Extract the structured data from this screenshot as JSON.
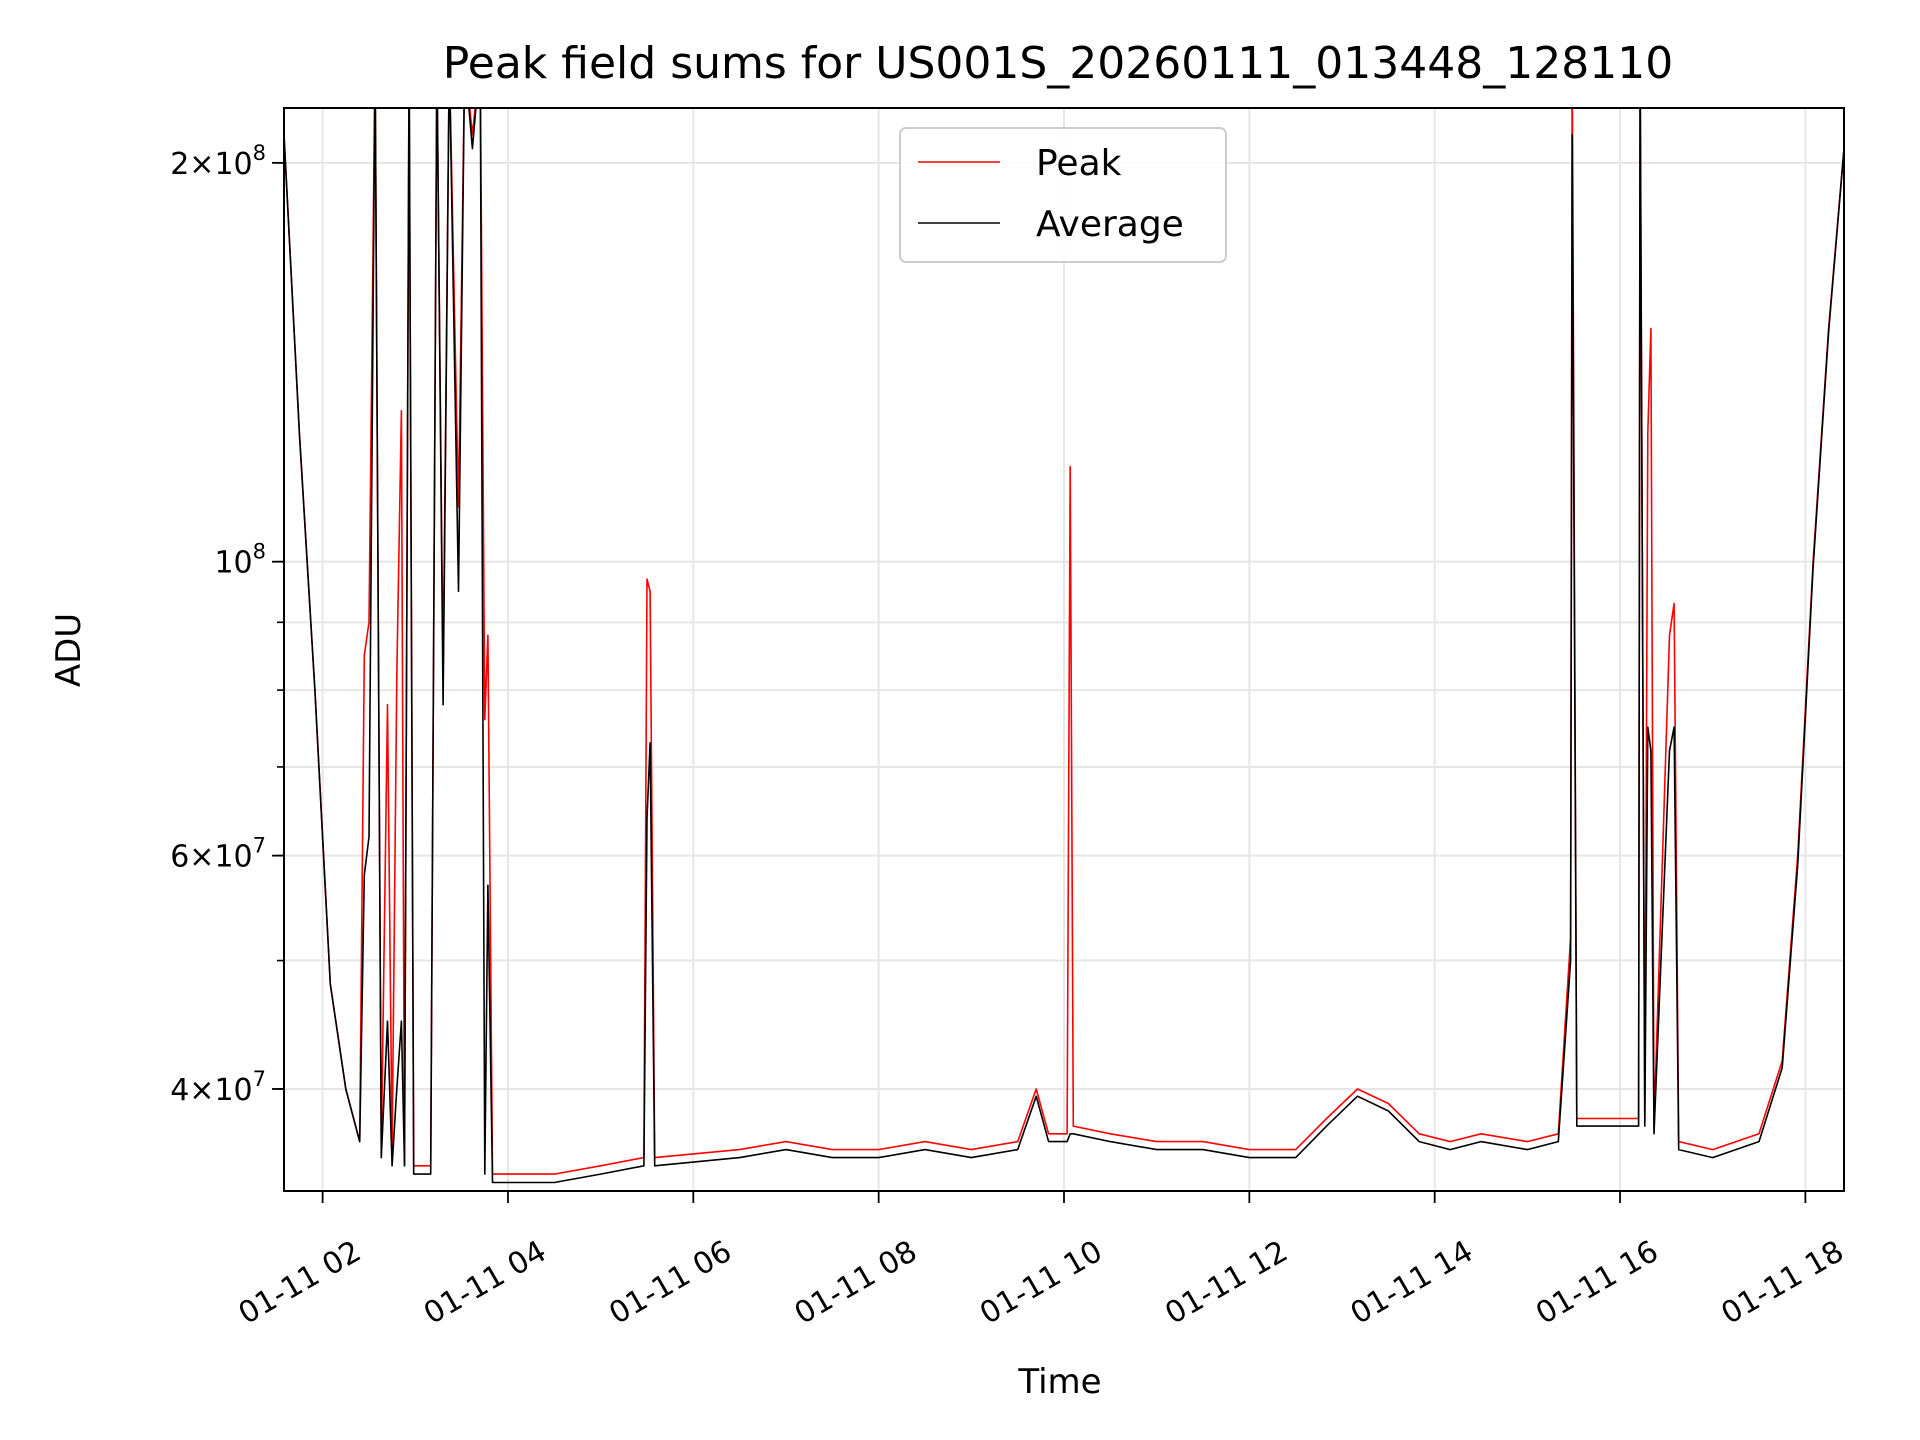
{
  "chart_data": {
    "type": "line",
    "title": "Peak field sums for US001S_20260111_013448_128110",
    "xlabel": "Time",
    "ylabel": "ADU",
    "yscale": "log",
    "ylim": [
      33500000,
      220000000
    ],
    "xlim": [
      "01-11 01:35",
      "01-11 18:25"
    ],
    "x_tick_labels": [
      "01-11 02",
      "01-11 04",
      "01-11 06",
      "01-11 08",
      "01-11 10",
      "01-11 12",
      "01-11 14",
      "01-11 16",
      "01-11 18"
    ],
    "y_tick_labels": [
      {
        "value": 40000000,
        "mantissa": "4",
        "exponent": "7"
      },
      {
        "value": 60000000,
        "mantissa": "6",
        "exponent": "7"
      },
      {
        "value": 100000000,
        "mantissa": "",
        "exponent": "8"
      },
      {
        "value": 200000000,
        "mantissa": "2",
        "exponent": "8"
      }
    ],
    "grid": true,
    "legend_position": "upper center",
    "series": [
      {
        "name": "Peak",
        "color": "#ff0000",
        "points": [
          [
            "01-11 01:35",
            210000000
          ],
          [
            "01-11 01:45",
            125000000
          ],
          [
            "01-11 01:55",
            80000000
          ],
          [
            "01-11 02:05",
            48000000
          ],
          [
            "01-11 02:15",
            40000000
          ],
          [
            "01-11 02:24",
            36500000
          ],
          [
            "01-11 02:27",
            85000000
          ],
          [
            "01-11 02:30",
            90000000
          ],
          [
            "01-11 02:34",
            240000000
          ],
          [
            "01-11 02:38",
            36000000
          ],
          [
            "01-11 02:42",
            78000000
          ],
          [
            "01-11 02:45",
            36000000
          ],
          [
            "01-11 02:48",
            82000000
          ],
          [
            "01-11 02:51",
            130000000
          ],
          [
            "01-11 02:53",
            35000000
          ],
          [
            "01-11 02:56",
            240000000
          ],
          [
            "01-11 02:59",
            35000000
          ],
          [
            "01-11 03:10",
            35000000
          ],
          [
            "01-11 03:14",
            240000000
          ],
          [
            "01-11 03:18",
            82000000
          ],
          [
            "01-11 03:22",
            240000000
          ],
          [
            "01-11 03:28",
            110000000
          ],
          [
            "01-11 03:32",
            240000000
          ],
          [
            "01-11 03:37",
            210000000
          ],
          [
            "01-11 03:42",
            240000000
          ],
          [
            "01-11 03:45",
            76000000
          ],
          [
            "01-11 03:47",
            88000000
          ],
          [
            "01-11 03:50",
            34500000
          ],
          [
            "01-11 04:30",
            34500000
          ],
          [
            "01-11 05:00",
            35000000
          ],
          [
            "01-11 05:28",
            35500000
          ],
          [
            "01-11 05:30",
            97000000
          ],
          [
            "01-11 05:32",
            95000000
          ],
          [
            "01-11 05:35",
            35500000
          ],
          [
            "01-11 06:30",
            36000000
          ],
          [
            "01-11 07:00",
            36500000
          ],
          [
            "01-11 07:30",
            36000000
          ],
          [
            "01-11 08:00",
            36000000
          ],
          [
            "01-11 08:30",
            36500000
          ],
          [
            "01-11 09:00",
            36000000
          ],
          [
            "01-11 09:30",
            36500000
          ],
          [
            "01-11 09:42",
            40000000
          ],
          [
            "01-11 09:50",
            37000000
          ],
          [
            "01-11 10:02",
            37000000
          ],
          [
            "01-11 10:04",
            118000000
          ],
          [
            "01-11 10:06",
            37500000
          ],
          [
            "01-11 10:30",
            37000000
          ],
          [
            "01-11 11:00",
            36500000
          ],
          [
            "01-11 11:30",
            36500000
          ],
          [
            "01-11 12:00",
            36000000
          ],
          [
            "01-11 12:30",
            36000000
          ],
          [
            "01-11 12:50",
            38000000
          ],
          [
            "01-11 13:10",
            40000000
          ],
          [
            "01-11 13:30",
            39000000
          ],
          [
            "01-11 13:50",
            37000000
          ],
          [
            "01-11 14:10",
            36500000
          ],
          [
            "01-11 14:30",
            37000000
          ],
          [
            "01-11 15:00",
            36500000
          ],
          [
            "01-11 15:20",
            37000000
          ],
          [
            "01-11 15:28",
            52000000
          ],
          [
            "01-11 15:29",
            240000000
          ],
          [
            "01-11 15:32",
            38000000
          ],
          [
            "01-11 16:00",
            38000000
          ],
          [
            "01-11 16:12",
            38000000
          ],
          [
            "01-11 16:13",
            240000000
          ],
          [
            "01-11 16:16",
            38000000
          ],
          [
            "01-11 16:18",
            125000000
          ],
          [
            "01-11 16:20",
            150000000
          ],
          [
            "01-11 16:22",
            37500000
          ],
          [
            "01-11 16:32",
            88000000
          ],
          [
            "01-11 16:35",
            93000000
          ],
          [
            "01-11 16:38",
            36500000
          ],
          [
            "01-11 17:00",
            36000000
          ],
          [
            "01-11 17:30",
            37000000
          ],
          [
            "01-11 17:45",
            42000000
          ],
          [
            "01-11 17:55",
            60000000
          ],
          [
            "01-11 18:05",
            100000000
          ],
          [
            "01-11 18:15",
            150000000
          ],
          [
            "01-11 18:25",
            205000000
          ]
        ]
      },
      {
        "name": "Average",
        "color": "#000000",
        "points": [
          [
            "01-11 01:35",
            210000000
          ],
          [
            "01-11 01:45",
            125000000
          ],
          [
            "01-11 01:55",
            80000000
          ],
          [
            "01-11 02:05",
            48000000
          ],
          [
            "01-11 02:15",
            40000000
          ],
          [
            "01-11 02:24",
            36500000
          ],
          [
            "01-11 02:27",
            58000000
          ],
          [
            "01-11 02:30",
            62000000
          ],
          [
            "01-11 02:34",
            240000000
          ],
          [
            "01-11 02:38",
            35500000
          ],
          [
            "01-11 02:42",
            45000000
          ],
          [
            "01-11 02:45",
            35000000
          ],
          [
            "01-11 02:48",
            40000000
          ],
          [
            "01-11 02:51",
            45000000
          ],
          [
            "01-11 02:53",
            35000000
          ],
          [
            "01-11 02:56",
            240000000
          ],
          [
            "01-11 02:59",
            34500000
          ],
          [
            "01-11 03:10",
            34500000
          ],
          [
            "01-11 03:14",
            240000000
          ],
          [
            "01-11 03:18",
            78000000
          ],
          [
            "01-11 03:22",
            240000000
          ],
          [
            "01-11 03:28",
            95000000
          ],
          [
            "01-11 03:32",
            240000000
          ],
          [
            "01-11 03:37",
            205000000
          ],
          [
            "01-11 03:42",
            240000000
          ],
          [
            "01-11 03:45",
            34500000
          ],
          [
            "01-11 03:47",
            57000000
          ],
          [
            "01-11 03:50",
            34000000
          ],
          [
            "01-11 04:30",
            34000000
          ],
          [
            "01-11 05:00",
            34500000
          ],
          [
            "01-11 05:28",
            35000000
          ],
          [
            "01-11 05:30",
            64000000
          ],
          [
            "01-11 05:32",
            73000000
          ],
          [
            "01-11 05:35",
            35000000
          ],
          [
            "01-11 06:30",
            35500000
          ],
          [
            "01-11 07:00",
            36000000
          ],
          [
            "01-11 07:30",
            35500000
          ],
          [
            "01-11 08:00",
            35500000
          ],
          [
            "01-11 08:30",
            36000000
          ],
          [
            "01-11 09:00",
            35500000
          ],
          [
            "01-11 09:30",
            36000000
          ],
          [
            "01-11 09:42",
            39500000
          ],
          [
            "01-11 09:50",
            36500000
          ],
          [
            "01-11 10:02",
            36500000
          ],
          [
            "01-11 10:04",
            37000000
          ],
          [
            "01-11 10:06",
            37000000
          ],
          [
            "01-11 10:30",
            36500000
          ],
          [
            "01-11 11:00",
            36000000
          ],
          [
            "01-11 11:30",
            36000000
          ],
          [
            "01-11 12:00",
            35500000
          ],
          [
            "01-11 12:30",
            35500000
          ],
          [
            "01-11 12:50",
            37500000
          ],
          [
            "01-11 13:10",
            39500000
          ],
          [
            "01-11 13:30",
            38500000
          ],
          [
            "01-11 13:50",
            36500000
          ],
          [
            "01-11 14:10",
            36000000
          ],
          [
            "01-11 14:30",
            36500000
          ],
          [
            "01-11 15:00",
            36000000
          ],
          [
            "01-11 15:20",
            36500000
          ],
          [
            "01-11 15:28",
            50000000
          ],
          [
            "01-11 15:29",
            210000000
          ],
          [
            "01-11 15:32",
            37500000
          ],
          [
            "01-11 16:00",
            37500000
          ],
          [
            "01-11 16:12",
            37500000
          ],
          [
            "01-11 16:13",
            240000000
          ],
          [
            "01-11 16:16",
            37500000
          ],
          [
            "01-11 16:18",
            75000000
          ],
          [
            "01-11 16:20",
            72000000
          ],
          [
            "01-11 16:22",
            37000000
          ],
          [
            "01-11 16:32",
            72000000
          ],
          [
            "01-11 16:35",
            75000000
          ],
          [
            "01-11 16:38",
            36000000
          ],
          [
            "01-11 17:00",
            35500000
          ],
          [
            "01-11 17:30",
            36500000
          ],
          [
            "01-11 17:45",
            41500000
          ],
          [
            "01-11 17:55",
            59000000
          ],
          [
            "01-11 18:05",
            99000000
          ],
          [
            "01-11 18:15",
            149000000
          ],
          [
            "01-11 18:25",
            205000000
          ]
        ]
      }
    ]
  }
}
